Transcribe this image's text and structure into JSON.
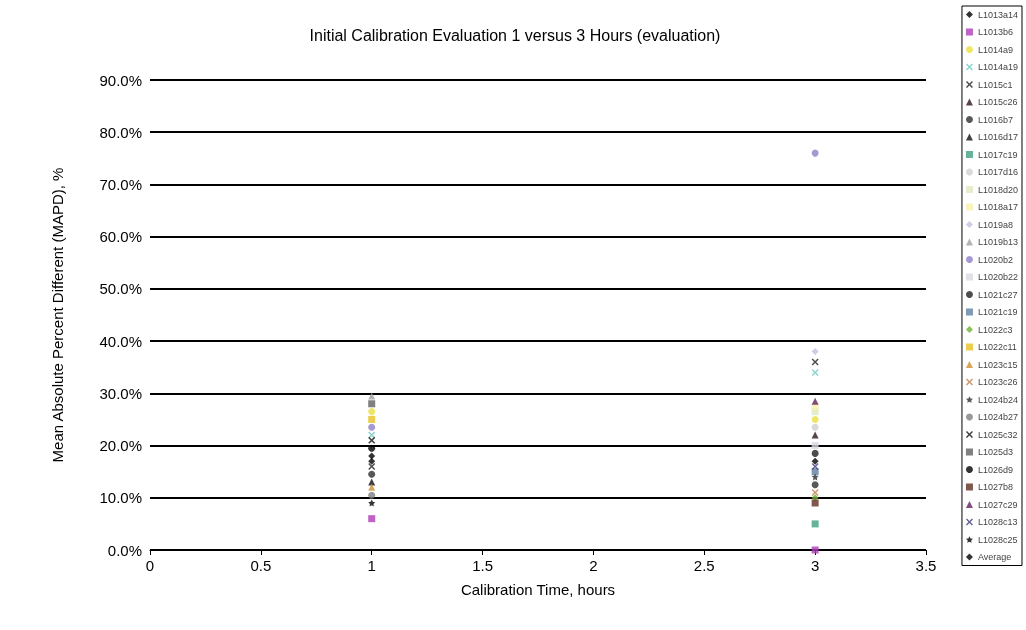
{
  "chart_data": {
    "type": "scatter",
    "title": "Initial Calibration Evaluation 1 versus 3 Hours (evaluation)",
    "xlabel": "Calibration Time, hours",
    "ylabel": "Mean Absolute Percent Different (MAPD), %",
    "x": [
      1,
      3
    ],
    "xlim": [
      0,
      3.5
    ],
    "xticks": [
      0,
      0.5,
      1,
      1.5,
      2,
      2.5,
      3,
      3.5
    ],
    "ylim": [
      0,
      90
    ],
    "yticks": [
      {
        "value": 0,
        "label": "0.0%"
      },
      {
        "value": 10,
        "label": "10.0%"
      },
      {
        "value": 20,
        "label": "20.0%"
      },
      {
        "value": 30,
        "label": "30.0%"
      },
      {
        "value": 40,
        "label": "40.0%"
      },
      {
        "value": 50,
        "label": "50.0%"
      },
      {
        "value": 60,
        "label": "60.0%"
      },
      {
        "value": 70,
        "label": "70.0%"
      },
      {
        "value": 80,
        "label": "80.0%"
      },
      {
        "value": 90,
        "label": "90.0%"
      }
    ],
    "grid": "y",
    "legend": "right",
    "series": [
      {
        "name": "L1013a14",
        "color": "#000000",
        "marker": "diamond",
        "values": [
          18,
          null
        ]
      },
      {
        "name": "L1013b6",
        "color": "#b03cb8",
        "marker": "square",
        "values": [
          6,
          0
        ]
      },
      {
        "name": "L1014a9",
        "color": "#e8e040",
        "marker": "circle",
        "values": [
          26.5,
          25
        ]
      },
      {
        "name": "L1014a19",
        "color": "#70c8c0",
        "marker": "cross",
        "values": [
          22,
          34
        ]
      },
      {
        "name": "L1015c1",
        "color": "#202020",
        "marker": "cross",
        "values": [
          16,
          36
        ]
      },
      {
        "name": "L1015c26",
        "color": "#301818",
        "marker": "triangle",
        "values": [
          null,
          22
        ]
      },
      {
        "name": "L1016b7",
        "color": "#303030",
        "marker": "circle",
        "values": [
          14.5,
          12.5
        ]
      },
      {
        "name": "L1016d17",
        "color": "#101010",
        "marker": "triangle",
        "values": [
          13,
          null
        ]
      },
      {
        "name": "L1017c19",
        "color": "#40a080",
        "marker": "square",
        "values": [
          null,
          5
        ]
      },
      {
        "name": "L1017d16",
        "color": "#d0d0d0",
        "marker": "circle",
        "values": [
          null,
          23.5
        ]
      },
      {
        "name": "L1018d20",
        "color": "#e0e8c0",
        "marker": "square",
        "values": [
          null,
          26.5
        ]
      },
      {
        "name": "L1018a17",
        "color": "#f8f0b0",
        "marker": "square",
        "values": [
          null,
          27.5
        ]
      },
      {
        "name": "L1019a8",
        "color": "#c0c0e0",
        "marker": "diamond",
        "values": [
          null,
          38
        ]
      },
      {
        "name": "L1019b13",
        "color": "#a0a0a0",
        "marker": "triangle",
        "values": [
          29.5,
          null
        ]
      },
      {
        "name": "L1020b2",
        "color": "#9080c8",
        "marker": "circle",
        "values": [
          23.5,
          76
        ]
      },
      {
        "name": "L1020b22",
        "color": "#d8d8e0",
        "marker": "square",
        "values": [
          null,
          20
        ]
      },
      {
        "name": "L1021c27",
        "color": "#202020",
        "marker": "circle",
        "values": [
          null,
          18.5
        ]
      },
      {
        "name": "L1021c19",
        "color": "#6080a0",
        "marker": "square",
        "values": [
          null,
          15
        ]
      },
      {
        "name": "L1022c3",
        "color": "#70b030",
        "marker": "diamond",
        "values": [
          null,
          10
        ]
      },
      {
        "name": "L1022c11",
        "color": "#e8c020",
        "marker": "square",
        "values": [
          25,
          null
        ]
      },
      {
        "name": "L1023c15",
        "color": "#d09030",
        "marker": "triangle",
        "values": [
          12,
          null
        ]
      },
      {
        "name": "L1023c26",
        "color": "#c08050",
        "marker": "cross",
        "values": [
          null,
          11
        ]
      },
      {
        "name": "L1024b24",
        "color": "#303030",
        "marker": "star",
        "values": [
          null,
          14
        ]
      },
      {
        "name": "L1024b27",
        "color": "#808080",
        "marker": "circle",
        "values": [
          10.5,
          null
        ]
      },
      {
        "name": "L1025c32",
        "color": "#101010",
        "marker": "cross",
        "values": [
          21,
          null
        ]
      },
      {
        "name": "L1025d3",
        "color": "#606060",
        "marker": "square",
        "values": [
          28,
          null
        ]
      },
      {
        "name": "L1026d9",
        "color": "#000000",
        "marker": "circle",
        "values": [
          19.5,
          null
        ]
      },
      {
        "name": "L1027b8",
        "color": "#603020",
        "marker": "square",
        "values": [
          null,
          9
        ]
      },
      {
        "name": "L1027c29",
        "color": "#602060",
        "marker": "triangle",
        "values": [
          null,
          28.5
        ]
      },
      {
        "name": "L1028c13",
        "color": "#404080",
        "marker": "cross",
        "values": [
          null,
          16
        ]
      },
      {
        "name": "L1028c25",
        "color": "#000000",
        "marker": "star",
        "values": [
          9,
          null
        ]
      },
      {
        "name": "Average",
        "color": "#000000",
        "marker": "diamond",
        "values": [
          17,
          17
        ]
      }
    ]
  }
}
